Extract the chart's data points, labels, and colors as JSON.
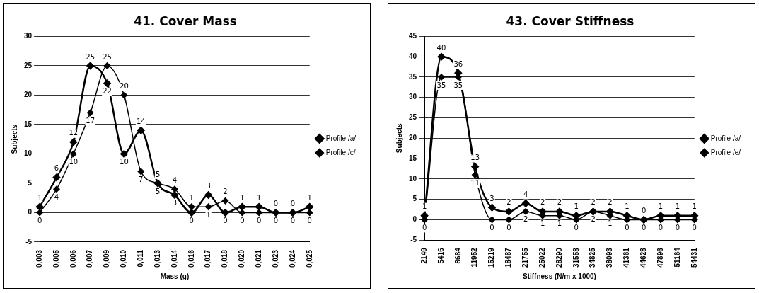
{
  "chart_data": [
    {
      "type": "line",
      "title": "41. Cover Mass",
      "xlabel": "Mass (g)",
      "ylabel": "Subjects",
      "categories": [
        "0,003",
        "0,005",
        "0,006",
        "0,007",
        "0,009",
        "0,010",
        "0,011",
        "0,013",
        "0,014",
        "0,016",
        "0,017",
        "0,018",
        "0,020",
        "0,021",
        "0,023",
        "0,024",
        "0,025"
      ],
      "series": [
        {
          "name": "Profile /a/",
          "color": "#000000",
          "values": [
            1,
            6,
            12,
            25,
            22,
            10,
            14,
            5,
            3,
            0,
            3,
            0,
            1,
            1,
            0,
            0,
            1
          ]
        },
        {
          "name": "Profile /c/",
          "color": "#000000",
          "values": [
            0,
            4,
            10,
            17,
            25,
            20,
            7,
            5,
            4,
            1,
            1,
            2,
            0,
            0,
            0,
            0,
            0
          ]
        }
      ],
      "ylim": [
        -5,
        30
      ],
      "yticks": [
        -5,
        0,
        5,
        10,
        15,
        20,
        25,
        30
      ],
      "grid": "y",
      "legend": "right",
      "marker": "diamond",
      "line_style": "solid",
      "data_labels": true
    },
    {
      "type": "line",
      "title": "43. Cover Stiffness",
      "xlabel": "Stiffness (N/m x 1000)",
      "ylabel": "Subjects",
      "categories": [
        "2149",
        "5416",
        "8684",
        "11952",
        "15219",
        "18487",
        "21755",
        "25022",
        "28290",
        "31558",
        "34825",
        "38093",
        "41361",
        "44628",
        "47896",
        "51164",
        "54431"
      ],
      "series": [
        {
          "name": "Profile /a/",
          "color": "#000000",
          "values": [
            1,
            40,
            36,
            13,
            3,
            2,
            4,
            2,
            2,
            1,
            2,
            2,
            1,
            0,
            1,
            1,
            1
          ]
        },
        {
          "name": "Profile /e/",
          "color": "#000000",
          "values": [
            0,
            35,
            35,
            11,
            0,
            0,
            2,
            1,
            1,
            0,
            2,
            1,
            0,
            0,
            0,
            0,
            0
          ]
        }
      ],
      "ylim": [
        -5,
        45
      ],
      "yticks": [
        -5,
        0,
        5,
        10,
        15,
        20,
        25,
        30,
        35,
        40,
        45
      ],
      "grid": "y",
      "legend": "right",
      "marker": "diamond",
      "line_style": "solid",
      "data_labels": true
    }
  ]
}
